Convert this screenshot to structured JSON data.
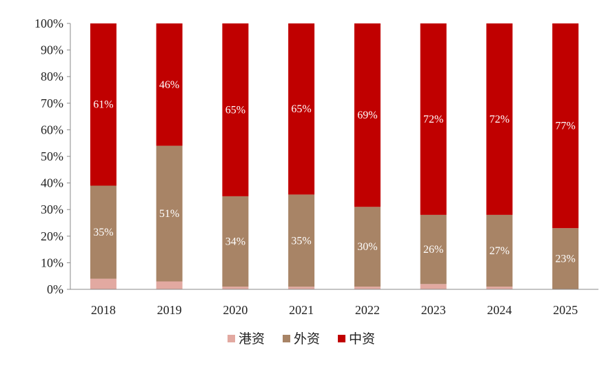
{
  "chart_data": {
    "type": "bar",
    "stacked": true,
    "percent_stacked": true,
    "categories": [
      "2018",
      "2019",
      "2020",
      "2021",
      "2022",
      "2023",
      "2024",
      "2025"
    ],
    "series": [
      {
        "name": "港资",
        "color": "#e2a9a1",
        "values": [
          4,
          3,
          1,
          1,
          1,
          2,
          1,
          0
        ]
      },
      {
        "name": "外资",
        "color": "#a88466",
        "values": [
          35,
          51,
          34,
          35,
          30,
          26,
          27,
          23
        ]
      },
      {
        "name": "中资",
        "color": "#c00000",
        "values": [
          61,
          46,
          65,
          65,
          69,
          72,
          72,
          77
        ]
      }
    ],
    "data_labels": {
      "外资": [
        "35%",
        "51%",
        "34%",
        "35%",
        "30%",
        "26%",
        "27%",
        "23%"
      ],
      "中资": [
        "61%",
        "46%",
        "65%",
        "65%",
        "69%",
        "72%",
        "72%",
        "77%"
      ]
    },
    "yticks": [
      "0%",
      "10%",
      "20%",
      "30%",
      "40%",
      "50%",
      "60%",
      "70%",
      "80%",
      "90%",
      "100%"
    ],
    "ylim": [
      0,
      100
    ],
    "title": "",
    "xlabel": "",
    "ylabel": "",
    "grid": false,
    "legend_position": "bottom-center"
  }
}
